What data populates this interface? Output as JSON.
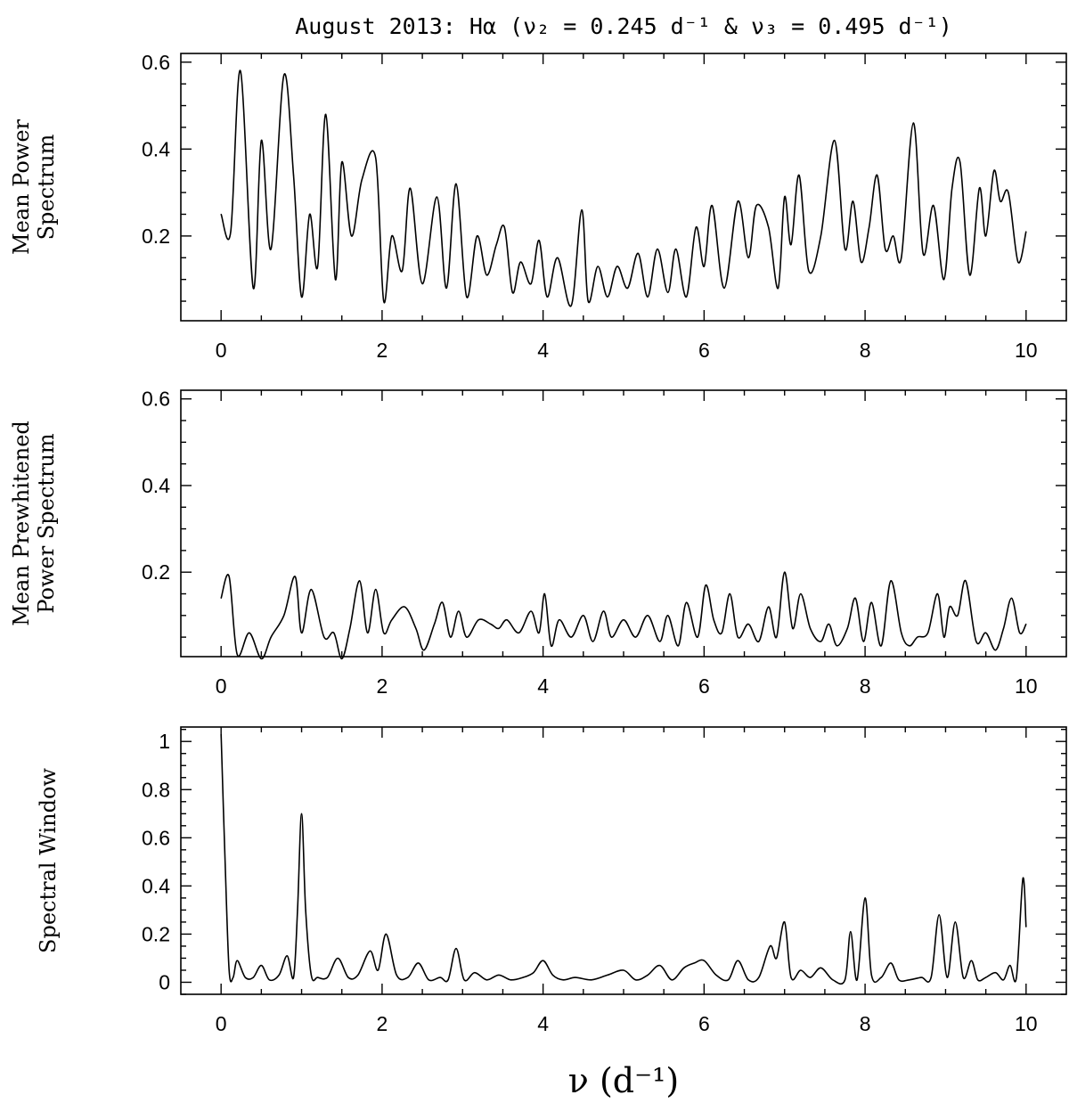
{
  "title": "August 2013: Hα (ν₂ = 0.245 d⁻¹ & ν₃ = 0.495 d⁻¹)",
  "xlabel": "ν  (d⁻¹)",
  "chart_data": [
    {
      "type": "line",
      "ylabel_lines": [
        "Mean Power",
        "Spectrum"
      ],
      "xlim": [
        -0.5,
        10.5
      ],
      "ylim": [
        0.005,
        0.62
      ],
      "xticks": [
        0,
        2,
        4,
        6,
        8,
        10
      ],
      "yticks": [
        0.2,
        0.4,
        0.6
      ],
      "ytick_labels": [
        "0.2",
        "0.4",
        "0.6"
      ],
      "series": [
        {
          "name": "Mean Power Spectrum",
          "x": [
            0,
            0.12,
            0.24,
            0.4,
            0.5,
            0.62,
            0.78,
            0.9,
            1.0,
            1.1,
            1.2,
            1.3,
            1.42,
            1.5,
            1.62,
            1.75,
            1.92,
            2.02,
            2.12,
            2.25,
            2.35,
            2.5,
            2.68,
            2.8,
            2.92,
            3.05,
            3.18,
            3.3,
            3.42,
            3.52,
            3.62,
            3.72,
            3.85,
            3.95,
            4.05,
            4.18,
            4.35,
            4.48,
            4.56,
            4.68,
            4.8,
            4.92,
            5.05,
            5.18,
            5.3,
            5.42,
            5.55,
            5.65,
            5.78,
            5.9,
            6.0,
            6.1,
            6.25,
            6.42,
            6.55,
            6.65,
            6.8,
            6.92,
            7.0,
            7.08,
            7.18,
            7.3,
            7.45,
            7.62,
            7.75,
            7.85,
            7.95,
            8.05,
            8.15,
            8.25,
            8.35,
            8.45,
            8.6,
            8.72,
            8.85,
            8.98,
            9.08,
            9.18,
            9.3,
            9.42,
            9.5,
            9.6,
            9.68,
            9.78,
            9.9,
            10.0
          ],
          "values": [
            0.25,
            0.21,
            0.58,
            0.08,
            0.42,
            0.17,
            0.57,
            0.34,
            0.06,
            0.25,
            0.13,
            0.48,
            0.1,
            0.37,
            0.2,
            0.33,
            0.38,
            0.05,
            0.2,
            0.12,
            0.31,
            0.09,
            0.29,
            0.08,
            0.32,
            0.06,
            0.2,
            0.11,
            0.18,
            0.22,
            0.07,
            0.14,
            0.09,
            0.19,
            0.06,
            0.15,
            0.04,
            0.26,
            0.05,
            0.13,
            0.06,
            0.13,
            0.08,
            0.16,
            0.06,
            0.17,
            0.07,
            0.17,
            0.06,
            0.22,
            0.13,
            0.27,
            0.08,
            0.28,
            0.15,
            0.27,
            0.22,
            0.08,
            0.29,
            0.18,
            0.34,
            0.12,
            0.2,
            0.42,
            0.17,
            0.28,
            0.14,
            0.22,
            0.34,
            0.17,
            0.2,
            0.15,
            0.46,
            0.16,
            0.27,
            0.1,
            0.31,
            0.37,
            0.11,
            0.31,
            0.2,
            0.35,
            0.28,
            0.3,
            0.14,
            0.21
          ]
        }
      ]
    },
    {
      "type": "line",
      "ylabel_lines": [
        "Mean Prewhitened",
        "Power Spectrum"
      ],
      "xlim": [
        -0.5,
        10.5
      ],
      "ylim": [
        0.005,
        0.62
      ],
      "xticks": [
        0,
        2,
        4,
        6,
        8,
        10
      ],
      "yticks": [
        0.2,
        0.4,
        0.6
      ],
      "ytick_labels": [
        "0.2",
        "0.4",
        "0.6"
      ],
      "series": [
        {
          "name": "Mean Prewhitened Power Spectrum",
          "x": [
            0,
            0.1,
            0.2,
            0.35,
            0.5,
            0.62,
            0.78,
            0.92,
            1.0,
            1.12,
            1.28,
            1.4,
            1.5,
            1.6,
            1.72,
            1.82,
            1.92,
            2.02,
            2.12,
            2.28,
            2.42,
            2.52,
            2.65,
            2.75,
            2.85,
            2.95,
            3.05,
            3.2,
            3.35,
            3.45,
            3.55,
            3.7,
            3.85,
            3.95,
            4.02,
            4.1,
            4.2,
            4.35,
            4.5,
            4.62,
            4.75,
            4.85,
            5.0,
            5.15,
            5.3,
            5.45,
            5.55,
            5.68,
            5.78,
            5.92,
            6.02,
            6.12,
            6.22,
            6.32,
            6.42,
            6.55,
            6.68,
            6.8,
            6.9,
            7.0,
            7.1,
            7.2,
            7.32,
            7.45,
            7.55,
            7.65,
            7.78,
            7.88,
            7.98,
            8.08,
            8.2,
            8.32,
            8.45,
            8.55,
            8.65,
            8.78,
            8.9,
            8.98,
            9.05,
            9.15,
            9.25,
            9.38,
            9.5,
            9.62,
            9.72,
            9.82,
            9.92,
            10.0
          ],
          "values": [
            0.14,
            0.19,
            0.01,
            0.06,
            0.0,
            0.05,
            0.1,
            0.19,
            0.06,
            0.16,
            0.05,
            0.06,
            0.0,
            0.07,
            0.18,
            0.06,
            0.16,
            0.06,
            0.09,
            0.12,
            0.07,
            0.02,
            0.08,
            0.13,
            0.05,
            0.11,
            0.05,
            0.09,
            0.08,
            0.07,
            0.09,
            0.06,
            0.11,
            0.06,
            0.15,
            0.03,
            0.09,
            0.05,
            0.1,
            0.04,
            0.11,
            0.05,
            0.09,
            0.05,
            0.1,
            0.04,
            0.1,
            0.03,
            0.13,
            0.05,
            0.17,
            0.09,
            0.06,
            0.15,
            0.05,
            0.08,
            0.04,
            0.12,
            0.05,
            0.2,
            0.07,
            0.15,
            0.07,
            0.04,
            0.08,
            0.03,
            0.07,
            0.14,
            0.04,
            0.13,
            0.03,
            0.18,
            0.06,
            0.03,
            0.05,
            0.06,
            0.15,
            0.05,
            0.12,
            0.1,
            0.18,
            0.04,
            0.06,
            0.02,
            0.07,
            0.14,
            0.06,
            0.08
          ]
        }
      ]
    },
    {
      "type": "line",
      "ylabel_lines": [
        "Spectral Window"
      ],
      "xlim": [
        -0.5,
        10.5
      ],
      "ylim": [
        -0.05,
        1.06
      ],
      "xticks": [
        0,
        2,
        4,
        6,
        8,
        10
      ],
      "yticks": [
        0,
        0.2,
        0.4,
        0.6,
        0.8,
        1.0
      ],
      "ytick_labels": [
        "0",
        "0.2",
        "0.4",
        "0.6",
        "0.8",
        "1"
      ],
      "series": [
        {
          "name": "Spectral Window",
          "x": [
            0,
            0.05,
            0.1,
            0.15,
            0.2,
            0.3,
            0.4,
            0.5,
            0.6,
            0.72,
            0.82,
            0.9,
            0.95,
            1.0,
            1.05,
            1.12,
            1.2,
            1.32,
            1.45,
            1.58,
            1.7,
            1.85,
            1.95,
            2.05,
            2.18,
            2.32,
            2.45,
            2.58,
            2.72,
            2.82,
            2.92,
            3.02,
            3.15,
            3.3,
            3.45,
            3.6,
            3.75,
            3.88,
            4.0,
            4.12,
            4.25,
            4.4,
            4.6,
            4.8,
            5.0,
            5.15,
            5.3,
            5.45,
            5.6,
            5.75,
            5.88,
            6.0,
            6.15,
            6.3,
            6.42,
            6.55,
            6.68,
            6.82,
            6.9,
            7.0,
            7.08,
            7.2,
            7.32,
            7.45,
            7.6,
            7.75,
            7.82,
            7.9,
            8.0,
            8.08,
            8.2,
            8.32,
            8.42,
            8.55,
            8.7,
            8.82,
            8.92,
            9.02,
            9.12,
            9.22,
            9.32,
            9.4,
            9.5,
            9.62,
            9.72,
            9.8,
            9.88,
            9.96,
            10.0
          ],
          "values": [
            1.03,
            0.5,
            0.05,
            0.02,
            0.09,
            0.02,
            0.02,
            0.07,
            0.01,
            0.03,
            0.11,
            0.02,
            0.3,
            0.7,
            0.3,
            0.03,
            0.02,
            0.02,
            0.1,
            0.02,
            0.03,
            0.13,
            0.05,
            0.2,
            0.03,
            0.02,
            0.08,
            0.01,
            0.02,
            0.01,
            0.14,
            0.01,
            0.04,
            0.01,
            0.03,
            0.01,
            0.02,
            0.04,
            0.09,
            0.03,
            0.01,
            0.02,
            0.01,
            0.03,
            0.05,
            0.01,
            0.03,
            0.07,
            0.01,
            0.06,
            0.08,
            0.09,
            0.03,
            0.01,
            0.09,
            0.01,
            0.02,
            0.15,
            0.1,
            0.25,
            0.02,
            0.05,
            0.02,
            0.06,
            0.01,
            0.01,
            0.21,
            0.01,
            0.35,
            0.03,
            0.02,
            0.08,
            0.01,
            0.01,
            0.02,
            0.02,
            0.28,
            0.02,
            0.25,
            0.02,
            0.09,
            0.01,
            0.02,
            0.04,
            0.01,
            0.07,
            0.02,
            0.43,
            0.23
          ]
        }
      ]
    }
  ]
}
